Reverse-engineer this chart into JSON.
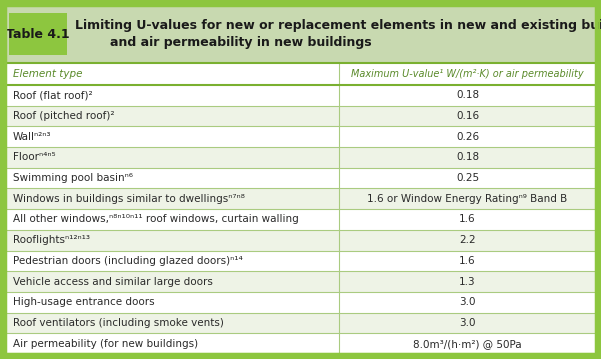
{
  "title_label": "Table 4.1",
  "title_text": " Limiting U-values for new or replacement elements in new and existing buildings\n        and air permeability in new buildings",
  "col1_header": "Element type",
  "col2_header": "Maximum U-value¹ W/(m²·K) or air permeability",
  "rows": [
    [
      "Roof (flat roof)²",
      "0.18"
    ],
    [
      "Roof (pitched roof)²",
      "0.16"
    ],
    [
      "Wallⁿ²ⁿ³",
      "0.26"
    ],
    [
      "Floorⁿ⁴ⁿ⁵",
      "0.18"
    ],
    [
      "Swimming pool basinⁿ⁶",
      "0.25"
    ],
    [
      "Windows in buildings similar to dwellingsⁿ⁷ⁿ⁸",
      "1.6 or Window Energy Ratingⁿ⁹ Band B"
    ],
    [
      "All other windows,ⁿ⁸ⁿ¹⁰ⁿ¹¹ roof windows, curtain walling",
      "1.6"
    ],
    [
      "Rooflightsⁿ¹²ⁿ¹³",
      "2.2"
    ],
    [
      "Pedestrian doors (including glazed doors)ⁿ¹⁴",
      "1.6"
    ],
    [
      "Vehicle access and similar large doors",
      "1.3"
    ],
    [
      "High-usage entrance doors",
      "3.0"
    ],
    [
      "Roof ventilators (including smoke vents)",
      "3.0"
    ],
    [
      "Air permeability (for new buildings)",
      "8.0m³/(h·m²) @ 50Pa"
    ]
  ],
  "header_bg": "#c8d9b0",
  "header_text_color": "#2a2a2a",
  "label_box_color": "#8dc63f",
  "col_header_color": "#5a8a2a",
  "row_text_color": "#2a2a2a",
  "outer_border_color": "#8dc63f",
  "table_bg": "#ffffff",
  "alt_row_bg": "#eef3e6",
  "line_color": "#aacb80",
  "header_line_color": "#7ab030",
  "font_size": 7.5,
  "col_split": 0.565
}
